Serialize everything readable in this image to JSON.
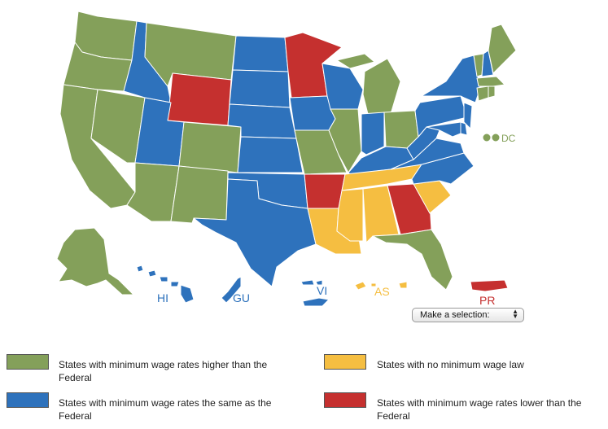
{
  "colors": {
    "higher": "#84A05A",
    "same": "#2E72BC",
    "none": "#F5BE41",
    "lower": "#C5302F"
  },
  "territories": {
    "hi": "HI",
    "gu": "GU",
    "vi": "VI",
    "as": "AS",
    "pr": "PR",
    "dc": "DC"
  },
  "selector": {
    "label": "Make a selection:"
  },
  "legend": {
    "higher": "States with minimum wage rates higher than the Federal",
    "same": "States with minimum wage rates the same as the Federal",
    "none": "States with no minimum wage law",
    "lower": "States with minimum wage rates lower than the Federal"
  },
  "state_categories": {
    "WA": "higher",
    "OR": "higher",
    "CA": "higher",
    "NV": "higher",
    "ID": "same",
    "MT": "higher",
    "WY": "lower",
    "UT": "same",
    "CO": "higher",
    "AZ": "higher",
    "NM": "higher",
    "ND": "same",
    "SD": "same",
    "NE": "same",
    "KS": "same",
    "OK": "same",
    "TX": "same",
    "MN": "lower",
    "IA": "same",
    "MO": "higher",
    "AR": "lower",
    "LA": "none",
    "WI": "same",
    "IL": "higher",
    "MI": "higher",
    "IN": "same",
    "OH": "higher",
    "KY": "same",
    "TN": "none",
    "MS": "none",
    "AL": "none",
    "GA": "lower",
    "FL": "higher",
    "SC": "none",
    "NC": "same",
    "VA": "same",
    "WV": "same",
    "PA": "same",
    "NY": "same",
    "ME": "higher",
    "VT": "higher",
    "NH": "same",
    "MA": "higher",
    "CT": "higher",
    "RI": "higher",
    "NJ": "same",
    "DE": "same",
    "MD": "same",
    "DC": "higher",
    "AK": "higher",
    "HI": "same",
    "GU": "same",
    "VI": "same",
    "AS": "none",
    "PR": "lower"
  }
}
